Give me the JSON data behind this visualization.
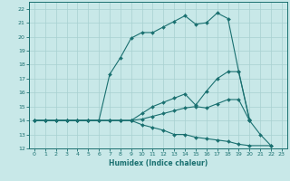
{
  "xlabel": "Humidex (Indice chaleur)",
  "background_color": "#c8e8e8",
  "line_color": "#1a7070",
  "grid_color": "#a8d0d0",
  "xlim": [
    -0.5,
    23.5
  ],
  "ylim": [
    12,
    22.5
  ],
  "xticks": [
    0,
    1,
    2,
    3,
    4,
    5,
    6,
    7,
    8,
    9,
    10,
    11,
    12,
    13,
    14,
    15,
    16,
    17,
    18,
    19,
    20,
    21,
    22,
    23
  ],
  "yticks": [
    12,
    13,
    14,
    15,
    16,
    17,
    18,
    19,
    20,
    21,
    22
  ],
  "line1_x": [
    0,
    1,
    2,
    3,
    4,
    5,
    6,
    7,
    8,
    9,
    10,
    11,
    12,
    13,
    14,
    15,
    16,
    17,
    18,
    19,
    20
  ],
  "line1_y": [
    14,
    14,
    14,
    14,
    14,
    14,
    14,
    17.3,
    18.5,
    19.9,
    20.3,
    20.3,
    20.7,
    21.1,
    21.5,
    20.9,
    21.0,
    21.7,
    21.3,
    17.5,
    14.0
  ],
  "line2_x": [
    0,
    1,
    2,
    3,
    4,
    5,
    6,
    7,
    8,
    9,
    10,
    11,
    12,
    13,
    14,
    15,
    16,
    17,
    18,
    19,
    20
  ],
  "line2_y": [
    14,
    14,
    14,
    14,
    14,
    14,
    14,
    14,
    14,
    14,
    14.5,
    15.0,
    15.3,
    15.6,
    15.9,
    15.1,
    16.1,
    17.0,
    17.5,
    17.5,
    14.1
  ],
  "line3_x": [
    0,
    1,
    2,
    3,
    4,
    5,
    6,
    7,
    8,
    9,
    10,
    11,
    12,
    13,
    14,
    15,
    16,
    17,
    18,
    19,
    20,
    21,
    22
  ],
  "line3_y": [
    14,
    14,
    14,
    14,
    14,
    14,
    14,
    14,
    14,
    14,
    14.1,
    14.3,
    14.5,
    14.7,
    14.9,
    15.0,
    14.9,
    15.2,
    15.5,
    15.5,
    14.0,
    13.0,
    12.2
  ],
  "line4_x": [
    0,
    1,
    2,
    3,
    4,
    5,
    6,
    7,
    8,
    9,
    10,
    11,
    12,
    13,
    14,
    15,
    16,
    17,
    18,
    19,
    20,
    22
  ],
  "line4_y": [
    14,
    14,
    14,
    14,
    14,
    14,
    14,
    14,
    14,
    14,
    13.7,
    13.5,
    13.3,
    13.0,
    13.0,
    12.8,
    12.7,
    12.6,
    12.5,
    12.3,
    12.2,
    12.2
  ]
}
